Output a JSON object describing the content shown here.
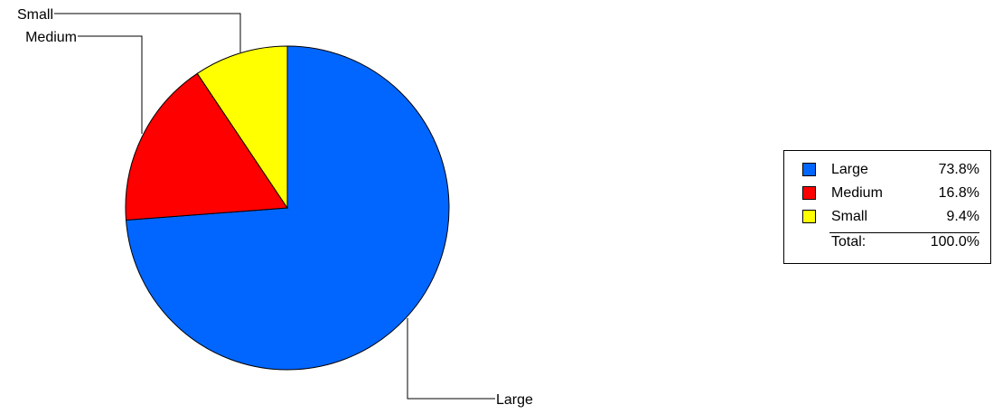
{
  "chart_data": {
    "type": "pie",
    "slices": [
      {
        "label": "Large",
        "value": 73.8,
        "value_label": "73.8%",
        "color": "#0066ff"
      },
      {
        "label": "Medium",
        "value": 16.8,
        "value_label": "16.8%",
        "color": "#ff0000"
      },
      {
        "label": "Small",
        "value": 9.4,
        "value_label": "9.4%",
        "color": "#ffff00"
      }
    ],
    "total_label": "Total:",
    "total_value": "100.0%",
    "legend_position": "right"
  }
}
